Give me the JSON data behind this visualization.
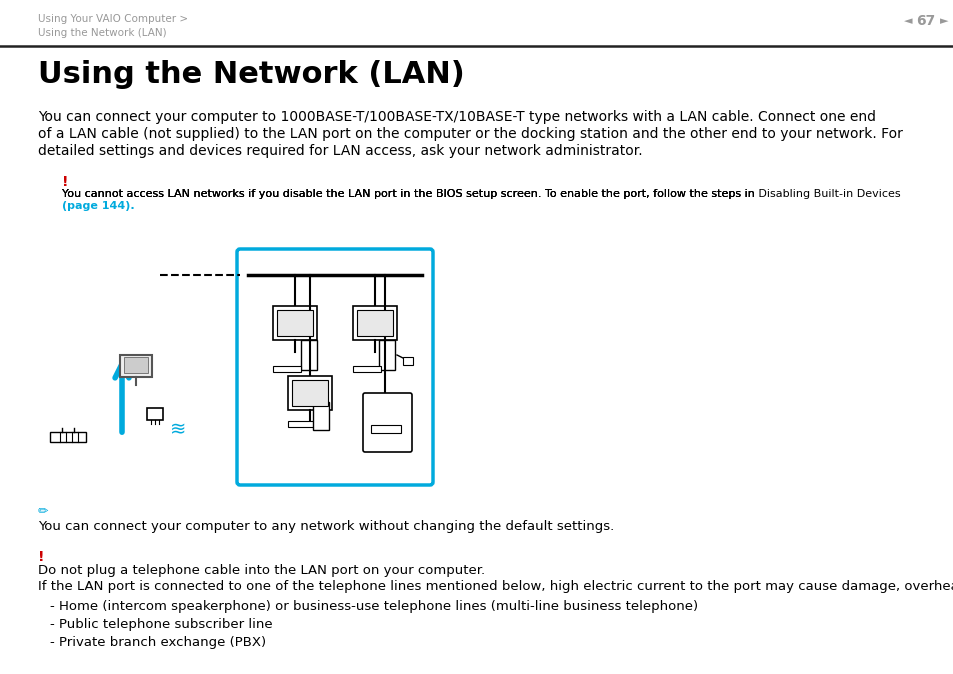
{
  "bg_color": "#ffffff",
  "header_text1": "Using Your VAIO Computer >",
  "header_text2": "Using the Network (LAN)",
  "header_page": "67",
  "header_gray": "#999999",
  "title": "Using the Network (LAN)",
  "body_line1": "You can connect your computer to 1000BASE-T/100BASE-TX/10BASE-T type networks with a LAN cable. Connect one end",
  "body_line2": "of a LAN cable (not supplied) to the LAN port on the computer or the docking station and the other end to your network. For",
  "body_line3": "detailed settings and devices required for LAN access, ask your network administrator.",
  "warn1_text": "You cannot access LAN networks if you disable the LAN port in the BIOS setup screen. To enable the port, follow the steps in  Disabling Built-in Devices\n(page 144).",
  "warn1_plain": "You cannot access LAN networks if you disable the LAN port in the BIOS setup screen. To enable the port, follow the steps in ",
  "warn1_bold": "Disabling Built-in Devices",
  "warn1_link": "(page 144).",
  "note_text": "You can connect your computer to any network without changing the default settings.",
  "warn2_line1": "Do not plug a telephone cable into the LAN port on your computer.",
  "warn2_line2": "If the LAN port is connected to one of the telephone lines mentioned below, high electric current to the port may cause damage, overheating, or fire.",
  "bullet1": "- Home (intercom speakerphone) or business-use telephone lines (multi-line business telephone)",
  "bullet2": "- Public telephone subscriber line",
  "bullet3": "- Private branch exchange (PBX)",
  "accent": "#00aadd",
  "red": "#cc0000",
  "black": "#000000",
  "divider_color": "#222222",
  "fig_w": 9.54,
  "fig_h": 6.74,
  "dpi": 100
}
